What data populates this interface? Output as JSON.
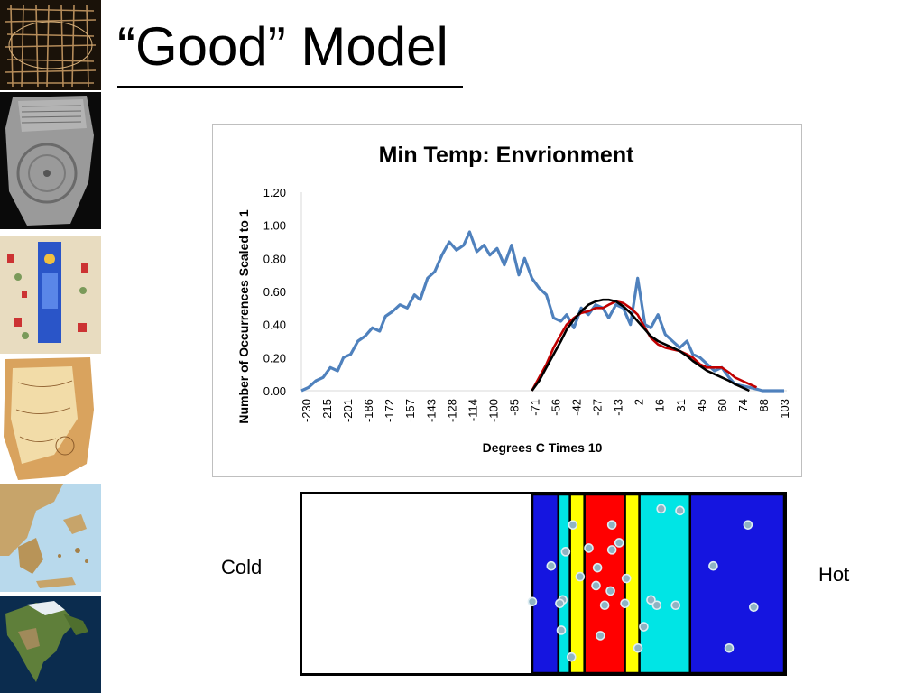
{
  "slide": {
    "title": "“Good” Model"
  },
  "labels": {
    "cold": "Cold",
    "hot": "Hot"
  },
  "thumbnails": [
    {
      "name": "grid-map-thumbnail",
      "colors": [
        "#1a1209",
        "#b58c5a"
      ]
    },
    {
      "name": "clay-tablet-map-thumbnail",
      "colors": [
        "#2b2b2b",
        "#9a9a9a"
      ]
    },
    {
      "name": "medieval-map-thumbnail",
      "colors": [
        "#e8dcc0",
        "#2a55c8"
      ]
    },
    {
      "name": "piri-reis-map-thumbnail",
      "colors": [
        "#d9a35e",
        "#f2dca8"
      ]
    },
    {
      "name": "greece-relief-map-thumbnail",
      "colors": [
        "#b8d9ec",
        "#c7a46a"
      ]
    },
    {
      "name": "north-america-globe-thumbnail",
      "colors": [
        "#0b2c4e",
        "#5f7f3a"
      ]
    }
  ],
  "chart_data": {
    "type": "line",
    "title": "Min Temp: Envrionment",
    "xlabel": "Degrees C Times 10",
    "ylabel": "Number of Occurrences Scaled to 1",
    "ylim": [
      0,
      1.2
    ],
    "yticks": [
      "0.00",
      "0.20",
      "0.40",
      "0.60",
      "0.80",
      "1.00",
      "1.20"
    ],
    "xticks": [
      "-230",
      "-215",
      "-201",
      "-186",
      "-172",
      "-157",
      "-143",
      "-128",
      "-114",
      "-100",
      "-85",
      "-71",
      "-56",
      "-42",
      "-27",
      "-13",
      "2",
      "16",
      "31",
      "45",
      "60",
      "74",
      "88",
      "103"
    ],
    "xlim": [
      -230,
      103
    ],
    "grid": false,
    "legend": "none",
    "series": [
      {
        "color": "#4f81bd",
        "x": [
          -230,
          -225,
          -220,
          -215,
          -210,
          -205,
          -201,
          -196,
          -191,
          -186,
          -181,
          -176,
          -172,
          -167,
          -162,
          -157,
          -152,
          -148,
          -143,
          -138,
          -133,
          -128,
          -123,
          -118,
          -114,
          -109,
          -104,
          -100,
          -95,
          -90,
          -85,
          -80,
          -76,
          -71,
          -66,
          -61,
          -56,
          -51,
          -47,
          -42,
          -37,
          -32,
          -27,
          -22,
          -18,
          -13,
          -8,
          -3,
          2,
          7,
          11,
          16,
          21,
          26,
          31,
          36,
          40,
          45,
          50,
          55,
          60,
          65,
          69,
          74,
          79,
          84,
          88,
          93,
          98,
          103
        ],
        "y": [
          0.0,
          0.02,
          0.06,
          0.08,
          0.14,
          0.12,
          0.2,
          0.22,
          0.3,
          0.33,
          0.38,
          0.36,
          0.45,
          0.48,
          0.52,
          0.5,
          0.58,
          0.55,
          0.68,
          0.72,
          0.82,
          0.9,
          0.85,
          0.88,
          0.96,
          0.84,
          0.88,
          0.82,
          0.86,
          0.76,
          0.88,
          0.7,
          0.8,
          0.68,
          0.62,
          0.58,
          0.44,
          0.42,
          0.46,
          0.38,
          0.5,
          0.46,
          0.52,
          0.5,
          0.44,
          0.52,
          0.5,
          0.4,
          0.68,
          0.4,
          0.38,
          0.46,
          0.34,
          0.3,
          0.26,
          0.3,
          0.22,
          0.2,
          0.16,
          0.12,
          0.14,
          0.08,
          0.04,
          0.03,
          0.02,
          0.01,
          0.0,
          0.0,
          0.0,
          0.0
        ]
      },
      {
        "color": "#c00000",
        "x": [
          -71,
          -66,
          -61,
          -56,
          -51,
          -47,
          -42,
          -37,
          -32,
          -27,
          -22,
          -18,
          -13,
          -8,
          -3,
          2,
          7,
          11,
          16,
          21,
          26,
          31,
          36,
          40,
          45,
          50,
          55,
          60,
          65,
          69,
          74,
          79,
          84
        ],
        "y": [
          0.0,
          0.08,
          0.16,
          0.26,
          0.34,
          0.4,
          0.44,
          0.47,
          0.48,
          0.5,
          0.5,
          0.52,
          0.54,
          0.53,
          0.5,
          0.46,
          0.38,
          0.32,
          0.28,
          0.26,
          0.25,
          0.24,
          0.22,
          0.2,
          0.16,
          0.14,
          0.14,
          0.14,
          0.11,
          0.08,
          0.06,
          0.04,
          0.02
        ]
      },
      {
        "color": "#000000",
        "x": [
          -71,
          -66,
          -61,
          -56,
          -51,
          -47,
          -42,
          -37,
          -32,
          -27,
          -22,
          -18,
          -13,
          -8,
          -3,
          2,
          7,
          11,
          16,
          21,
          26,
          31,
          36,
          40,
          45,
          50,
          55,
          60,
          65,
          69,
          74,
          79
        ],
        "y": [
          0.0,
          0.06,
          0.14,
          0.22,
          0.3,
          0.37,
          0.43,
          0.48,
          0.52,
          0.54,
          0.55,
          0.55,
          0.54,
          0.51,
          0.47,
          0.42,
          0.37,
          0.33,
          0.3,
          0.28,
          0.26,
          0.24,
          0.21,
          0.18,
          0.15,
          0.12,
          0.1,
          0.08,
          0.06,
          0.04,
          0.02,
          0.0
        ]
      }
    ]
  },
  "model_bar": {
    "extent": [
      -230,
      103
    ],
    "bands": [
      {
        "from": -230,
        "to": -71,
        "color": "#ffffff"
      },
      {
        "from": -71,
        "to": -53,
        "color": "#1515e0"
      },
      {
        "from": -53,
        "to": -45,
        "color": "#00e5e5"
      },
      {
        "from": -45,
        "to": -35,
        "color": "#ffff00"
      },
      {
        "from": -35,
        "to": -7,
        "color": "#ff0000"
      },
      {
        "from": -7,
        "to": 3,
        "color": "#ffff00"
      },
      {
        "from": 3,
        "to": 38,
        "color": "#00e5e5"
      },
      {
        "from": 38,
        "to": 103,
        "color": "#1515e0"
      }
    ],
    "dots": [
      [
        -43,
        0.83
      ],
      [
        -16,
        0.83
      ],
      [
        31,
        0.91
      ],
      [
        54,
        0.6
      ],
      [
        18,
        0.92
      ],
      [
        78,
        0.83
      ],
      [
        -48,
        0.68
      ],
      [
        -32,
        0.7
      ],
      [
        -26,
        0.59
      ],
      [
        -16,
        0.69
      ],
      [
        -6,
        0.53
      ],
      [
        -58,
        0.6
      ],
      [
        -38,
        0.54
      ],
      [
        -27,
        0.49
      ],
      [
        -17,
        0.46
      ],
      [
        -11,
        0.73
      ],
      [
        -50,
        0.41
      ],
      [
        -21,
        0.38
      ],
      [
        -7,
        0.39
      ],
      [
        11,
        0.41
      ],
      [
        28,
        0.38
      ],
      [
        -71,
        0.4
      ],
      [
        15,
        0.38
      ],
      [
        6,
        0.26
      ],
      [
        -52,
        0.39
      ],
      [
        82,
        0.37
      ],
      [
        -51,
        0.24
      ],
      [
        -24,
        0.21
      ],
      [
        2,
        0.14
      ],
      [
        65,
        0.14
      ],
      [
        -44,
        0.09
      ]
    ],
    "dot_color": "#8fb3c3"
  }
}
